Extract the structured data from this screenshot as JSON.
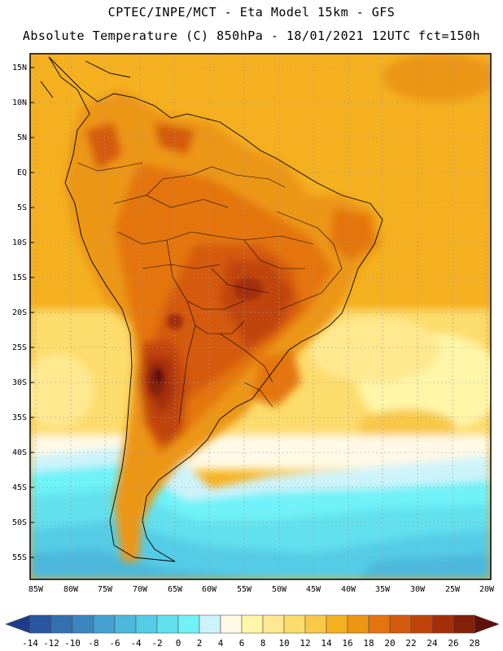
{
  "header": {
    "line1": "CPTEC/INPE/MCT -  Eta Model 15km - GFS",
    "line2": "Absolute Temperature (C) 850hPa - 18/01/2021 12UTC fct=150h"
  },
  "map": {
    "lat_labels": [
      "15N",
      "10N",
      "5N",
      "EQ",
      "5S",
      "10S",
      "15S",
      "20S",
      "25S",
      "30S",
      "35S",
      "40S",
      "45S",
      "50S",
      "55S"
    ],
    "lon_labels": [
      "85W",
      "80W",
      "75W",
      "70W",
      "65W",
      "60W",
      "55W",
      "50W",
      "45W",
      "40W",
      "35W",
      "30W",
      "25W",
      "20W"
    ]
  },
  "colorbar": {
    "labels": [
      "-14",
      "-12",
      "-10",
      "-8",
      "-6",
      "-4",
      "-2",
      "0",
      "2",
      "4",
      "6",
      "8",
      "10",
      "12",
      "14",
      "16",
      "18",
      "20",
      "22",
      "24",
      "26",
      "28"
    ],
    "colors": [
      "#1e3c8c",
      "#2a55a0",
      "#3470b0",
      "#3c86c0",
      "#44a0d0",
      "#4cb8dc",
      "#54cce6",
      "#62e0ee",
      "#70f2f8",
      "#cdf3fa",
      "#fff9e6",
      "#fff6a8",
      "#fee890",
      "#fcdc6c",
      "#f8c848",
      "#f5b020",
      "#ec9614",
      "#e47410",
      "#d45a0c",
      "#c0440a",
      "#a42e08",
      "#822008",
      "#601008"
    ]
  }
}
